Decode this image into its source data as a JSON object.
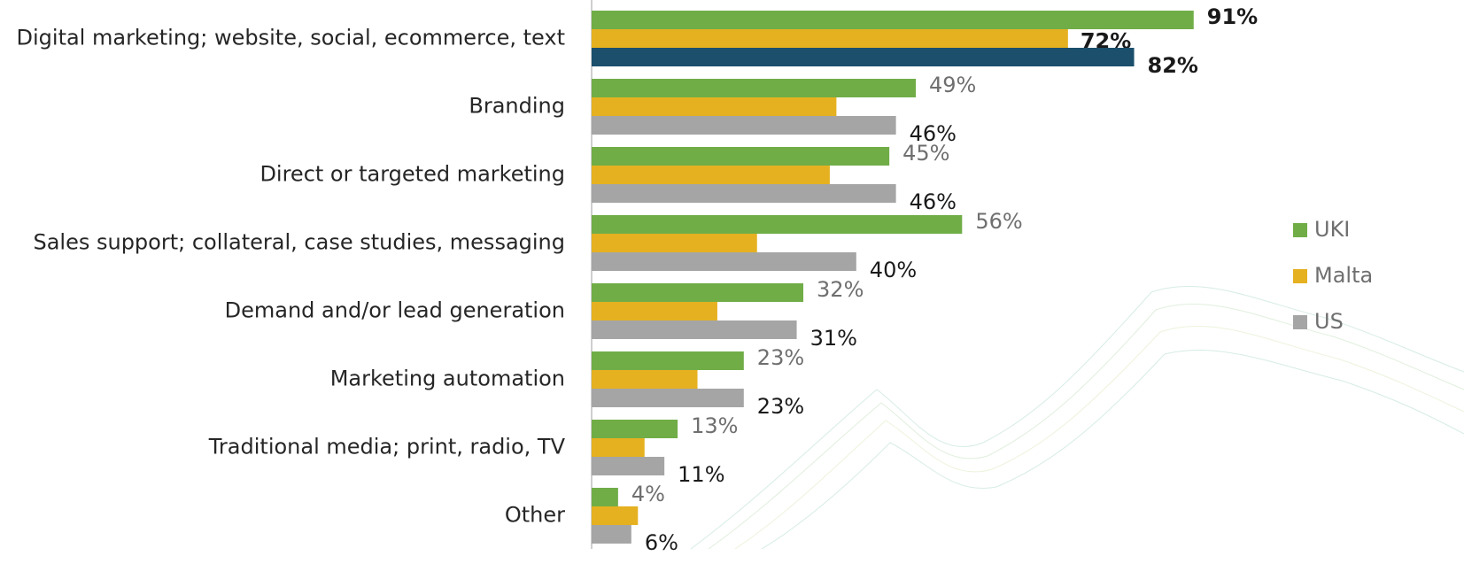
{
  "chart_data": {
    "type": "hbar",
    "categories": [
      "Digital marketing; website, social, ecommerce, text",
      "Branding",
      "Direct or targeted marketing",
      "Sales support; collateral, case studies, messaging",
      "Demand and/or lead generation",
      "Marketing automation",
      "Traditional media; print, radio, TV",
      "Other"
    ],
    "series": [
      {
        "name": "UKI",
        "color": "#70ad47",
        "values": [
          91,
          49,
          45,
          56,
          32,
          23,
          13,
          4
        ],
        "value_labels": [
          "91%",
          "49%",
          "45%",
          "56%",
          "32%",
          "23%",
          "13%",
          "4%"
        ]
      },
      {
        "name": "Malta",
        "color": "#e5b120",
        "values": [
          72,
          37,
          36,
          25,
          19,
          16,
          8,
          7
        ],
        "value_labels": [
          "72%",
          null,
          null,
          null,
          null,
          null,
          null,
          null
        ]
      },
      {
        "name": "US",
        "color": "#a5a5a5",
        "colors": [
          "#1b4f6c",
          "#a5a5a5",
          "#a5a5a5",
          "#a5a5a5",
          "#a5a5a5",
          "#a5a5a5",
          "#a5a5a5",
          "#a5a5a5"
        ],
        "values": [
          82,
          46,
          46,
          40,
          31,
          23,
          11,
          6
        ],
        "value_labels": [
          "82%",
          "46%",
          "46%",
          "40%",
          "31%",
          "23%",
          "11%",
          "6%"
        ]
      }
    ],
    "legend": "right"
  }
}
